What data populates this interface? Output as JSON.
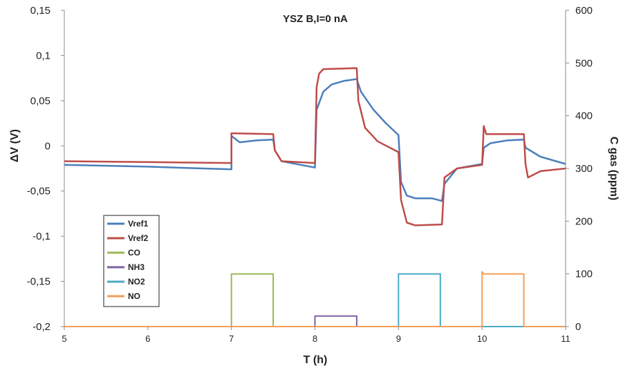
{
  "chart_data": {
    "type": "line",
    "title": "YSZ B,I=0 nA",
    "xlabel": "T (h)",
    "ylabel_left": "ΔV (V)",
    "ylabel_right": "C gas (ppm)",
    "xlim": [
      5,
      11
    ],
    "ylim_left": [
      -0.2,
      0.15
    ],
    "ylim_right": [
      0,
      600
    ],
    "x_ticks": [
      "5",
      "6",
      "7",
      "8",
      "9",
      "10",
      "11"
    ],
    "y_left_ticks": [
      "-0,2",
      "-0,15",
      "-0,1",
      "-0,05",
      "0",
      "0,05",
      "0,1",
      "0,15"
    ],
    "y_right_ticks": [
      "0",
      "100",
      "200",
      "300",
      "400",
      "500",
      "600"
    ],
    "grid": false,
    "legend_position": "left, lower-middle",
    "series": [
      {
        "name": "Vref1",
        "color": "#4a7ebb",
        "axis": "left",
        "points": [
          [
            5.0,
            -0.021
          ],
          [
            6.0,
            -0.023
          ],
          [
            7.0,
            -0.026
          ],
          [
            7.0,
            0.011
          ],
          [
            7.1,
            0.004
          ],
          [
            7.3,
            0.006
          ],
          [
            7.5,
            0.007
          ],
          [
            7.52,
            -0.005
          ],
          [
            7.6,
            -0.017
          ],
          [
            8.0,
            -0.024
          ],
          [
            8.02,
            0.04
          ],
          [
            8.1,
            0.06
          ],
          [
            8.2,
            0.068
          ],
          [
            8.35,
            0.072
          ],
          [
            8.5,
            0.074
          ],
          [
            8.55,
            0.06
          ],
          [
            8.7,
            0.04
          ],
          [
            8.85,
            0.025
          ],
          [
            9.0,
            0.012
          ],
          [
            9.03,
            -0.04
          ],
          [
            9.1,
            -0.055
          ],
          [
            9.2,
            -0.058
          ],
          [
            9.4,
            -0.058
          ],
          [
            9.52,
            -0.061
          ],
          [
            9.55,
            -0.042
          ],
          [
            9.7,
            -0.025
          ],
          [
            10.0,
            -0.02
          ],
          [
            10.02,
            -0.002
          ],
          [
            10.1,
            0.003
          ],
          [
            10.3,
            0.006
          ],
          [
            10.5,
            0.007
          ],
          [
            10.52,
            -0.002
          ],
          [
            10.7,
            -0.012
          ],
          [
            11.0,
            -0.02
          ]
        ]
      },
      {
        "name": "Vref2",
        "color": "#be4b48",
        "axis": "left",
        "points": [
          [
            5.0,
            -0.017
          ],
          [
            6.0,
            -0.018
          ],
          [
            7.0,
            -0.019
          ],
          [
            7.0,
            0.014
          ],
          [
            7.5,
            0.013
          ],
          [
            7.52,
            -0.005
          ],
          [
            7.6,
            -0.017
          ],
          [
            8.0,
            -0.019
          ],
          [
            8.02,
            0.065
          ],
          [
            8.05,
            0.08
          ],
          [
            8.1,
            0.085
          ],
          [
            8.5,
            0.086
          ],
          [
            8.52,
            0.05
          ],
          [
            8.6,
            0.02
          ],
          [
            8.75,
            0.005
          ],
          [
            9.0,
            -0.007
          ],
          [
            9.03,
            -0.06
          ],
          [
            9.1,
            -0.085
          ],
          [
            9.2,
            -0.088
          ],
          [
            9.52,
            -0.087
          ],
          [
            9.55,
            -0.035
          ],
          [
            9.7,
            -0.025
          ],
          [
            10.0,
            -0.021
          ],
          [
            10.02,
            0.022
          ],
          [
            10.05,
            0.013
          ],
          [
            10.5,
            0.013
          ],
          [
            10.52,
            -0.02
          ],
          [
            10.55,
            -0.035
          ],
          [
            10.7,
            -0.028
          ],
          [
            11.0,
            -0.025
          ]
        ]
      },
      {
        "name": "CO",
        "color": "#98b954",
        "axis": "right",
        "points": [
          [
            5.0,
            0
          ],
          [
            7.0,
            0
          ],
          [
            7.0,
            100
          ],
          [
            7.5,
            100
          ],
          [
            7.5,
            0
          ],
          [
            11.0,
            0
          ]
        ]
      },
      {
        "name": "NH3",
        "color": "#7d5fa0",
        "axis": "right",
        "points": [
          [
            5.0,
            0
          ],
          [
            8.0,
            0
          ],
          [
            8.0,
            20
          ],
          [
            8.5,
            20
          ],
          [
            8.5,
            0
          ],
          [
            11.0,
            0
          ]
        ]
      },
      {
        "name": "NO2",
        "color": "#46aac5",
        "axis": "right",
        "points": [
          [
            5.0,
            0
          ],
          [
            9.0,
            0
          ],
          [
            9.0,
            100
          ],
          [
            9.5,
            100
          ],
          [
            9.5,
            0
          ],
          [
            11.0,
            0
          ]
        ]
      },
      {
        "name": "NO",
        "color": "#f59d56",
        "axis": "right",
        "points": [
          [
            5.0,
            0
          ],
          [
            10.0,
            0
          ],
          [
            10.0,
            104
          ],
          [
            10.02,
            100
          ],
          [
            10.5,
            100
          ],
          [
            10.5,
            0
          ],
          [
            11.0,
            0
          ]
        ]
      }
    ]
  }
}
